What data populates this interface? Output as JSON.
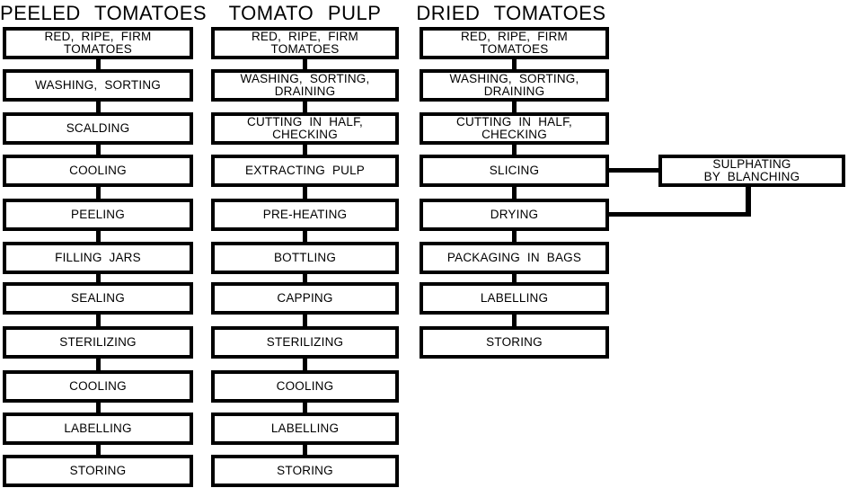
{
  "diagram": {
    "colors": {
      "line": "#000000",
      "background": "#ffffff"
    },
    "columns": [
      {
        "title": "PEELED TOMATOES",
        "steps": [
          "RED, RIPE, FIRM\nTOMATOES",
          "WASHING, SORTING",
          "SCALDING",
          "COOLING",
          "PEELING",
          "FILLING JARS",
          "SEALING",
          "STERILIZING",
          "COOLING",
          "LABELLING",
          "STORING"
        ]
      },
      {
        "title": "TOMATO PULP",
        "steps": [
          "RED, RIPE, FIRM\nTOMATOES",
          "WASHING, SORTING,\nDRAINING",
          "CUTTING IN HALF,\nCHECKING",
          "EXTRACTING PULP",
          "PRE-HEATING",
          "BOTTLING",
          "CAPPING",
          "STERILIZING",
          "COOLING",
          "LABELLING",
          "STORING"
        ]
      },
      {
        "title": "DRIED TOMATOES",
        "steps": [
          "RED, RIPE, FIRM\nTOMATOES",
          "WASHING, SORTING,\nDRAINING",
          "CUTTING IN HALF,\nCHECKING",
          "SLICING",
          "DRYING",
          "PACKAGING IN BAGS",
          "LABELLING",
          "STORING"
        ]
      }
    ],
    "side_box": {
      "label": "SULPHATING\nBY BLANCHING",
      "connected_from": "SLICING",
      "connected_to": "DRYING"
    }
  }
}
